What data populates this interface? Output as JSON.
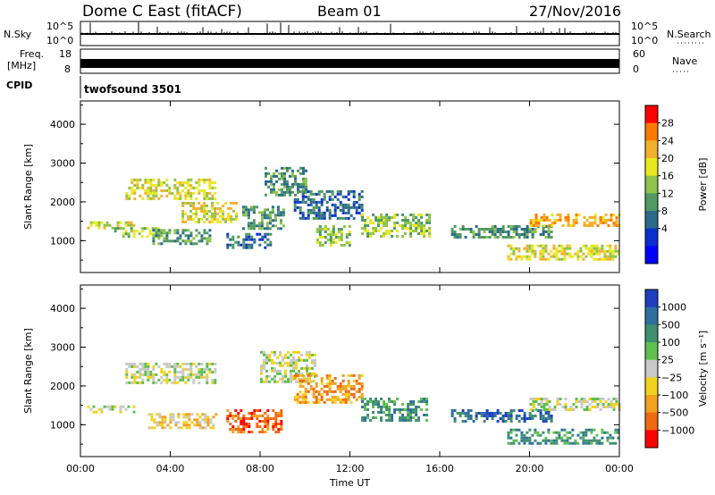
{
  "header": {
    "station": "Dome C East (fitACF)",
    "beam": "Beam 01",
    "date": "27/Nov/2016"
  },
  "strips": {
    "nsky_label": "N.Sky",
    "nsky_ticks": [
      "10^5",
      "10^0"
    ],
    "nsearch_label": "N.Search",
    "nsearch_ticks": [
      "10^5",
      "10^0"
    ],
    "freq_label": "Freq.",
    "freq_unit": "[MHz]",
    "freq_ticks": [
      "18",
      "8"
    ],
    "nave_label": "Nave",
    "nave_ticks": [
      "60",
      "0"
    ],
    "cpid_label": "CPID",
    "cpid_value": "twofsound 3501"
  },
  "chart_data": [
    {
      "type": "heatmap",
      "panel": "power",
      "ylabel": "Slant Range [km]",
      "xlabel": "",
      "x_ticks": [
        "00:00",
        "04:00",
        "08:00",
        "12:00",
        "16:00",
        "20:00",
        "00:00"
      ],
      "xlim_hours": [
        0,
        24
      ],
      "ylim_km": [
        180,
        4600
      ],
      "y_ticks": [
        1000,
        2000,
        3000,
        4000
      ],
      "colorbar": {
        "label": "Power [dB]",
        "ticks": [
          "28",
          "24",
          "20",
          "16",
          "12",
          "8",
          "4"
        ],
        "colors": [
          "#ff0000",
          "#ff7a00",
          "#f2b12d",
          "#e8e81e",
          "#8fc34a",
          "#4e9a60",
          "#2a6b8c",
          "#0a2fcf",
          "#0000ff"
        ]
      },
      "regions": [
        {
          "t": [
            0.3,
            2.4
          ],
          "r": [
            1300,
            1500
          ],
          "level": 3
        },
        {
          "t": [
            1.5,
            3.5
          ],
          "r": [
            1100,
            1350
          ],
          "level": 4
        },
        {
          "t": [
            2.0,
            6.0
          ],
          "r": [
            2100,
            2600
          ],
          "level": 3
        },
        {
          "t": [
            3.2,
            5.8
          ],
          "r": [
            900,
            1300
          ],
          "level": 5
        },
        {
          "t": [
            4.5,
            7.0
          ],
          "r": [
            1500,
            2000
          ],
          "level": 3
        },
        {
          "t": [
            6.5,
            8.5
          ],
          "r": [
            800,
            1200
          ],
          "level": 6
        },
        {
          "t": [
            7.2,
            9.0
          ],
          "r": [
            1300,
            1900
          ],
          "level": 5
        },
        {
          "t": [
            8.2,
            10.0
          ],
          "r": [
            2200,
            2900
          ],
          "level": 5
        },
        {
          "t": [
            9.5,
            12.5
          ],
          "r": [
            1600,
            2300
          ],
          "level": 6
        },
        {
          "t": [
            10.5,
            12.0
          ],
          "r": [
            900,
            1400
          ],
          "level": 4
        },
        {
          "t": [
            12.5,
            15.5
          ],
          "r": [
            1100,
            1700
          ],
          "level": 4
        },
        {
          "t": [
            16.5,
            21.0
          ],
          "r": [
            1100,
            1400
          ],
          "level": 5
        },
        {
          "t": [
            19.0,
            24.0
          ],
          "r": [
            500,
            900
          ],
          "level": 3
        },
        {
          "t": [
            20.0,
            24.0
          ],
          "r": [
            1400,
            1700
          ],
          "level": 2
        }
      ]
    },
    {
      "type": "heatmap",
      "panel": "velocity",
      "ylabel": "Slant Range [km]",
      "xlabel": "Time UT",
      "x_ticks": [
        "00:00",
        "04:00",
        "08:00",
        "12:00",
        "16:00",
        "20:00",
        "00:00"
      ],
      "xlim_hours": [
        0,
        24
      ],
      "ylim_km": [
        180,
        4600
      ],
      "y_ticks": [
        1000,
        2000,
        3000,
        4000
      ],
      "colorbar": {
        "label": "Velocity [m s⁻¹]",
        "ticks": [
          "1000",
          "500",
          "100",
          "25",
          "−25",
          "−100",
          "−500",
          "−1000"
        ],
        "colors": [
          "#1f3fbf",
          "#2f6f9f",
          "#3f8f6f",
          "#5fbf4f",
          "#c8c8c8",
          "#f2d21e",
          "#f2a01e",
          "#f06a10",
          "#ff0000"
        ]
      },
      "regions": [
        {
          "t": [
            0.3,
            2.4
          ],
          "r": [
            1300,
            1500
          ],
          "level": 4
        },
        {
          "t": [
            2.0,
            6.0
          ],
          "r": [
            2100,
            2600
          ],
          "level": 4
        },
        {
          "t": [
            3.0,
            6.0
          ],
          "r": [
            900,
            1300
          ],
          "level": 5
        },
        {
          "t": [
            6.5,
            9.0
          ],
          "r": [
            800,
            1400
          ],
          "level": 7
        },
        {
          "t": [
            8.0,
            10.5
          ],
          "r": [
            2100,
            2900
          ],
          "level": 4
        },
        {
          "t": [
            9.5,
            12.5
          ],
          "r": [
            1600,
            2300
          ],
          "level": 6
        },
        {
          "t": [
            12.5,
            15.5
          ],
          "r": [
            1100,
            1700
          ],
          "level": 2
        },
        {
          "t": [
            16.5,
            21.0
          ],
          "r": [
            1100,
            1400
          ],
          "level": 1
        },
        {
          "t": [
            19.0,
            24.0
          ],
          "r": [
            500,
            900
          ],
          "level": 2
        },
        {
          "t": [
            20.0,
            24.0
          ],
          "r": [
            1400,
            1700
          ],
          "level": 4
        }
      ]
    }
  ]
}
